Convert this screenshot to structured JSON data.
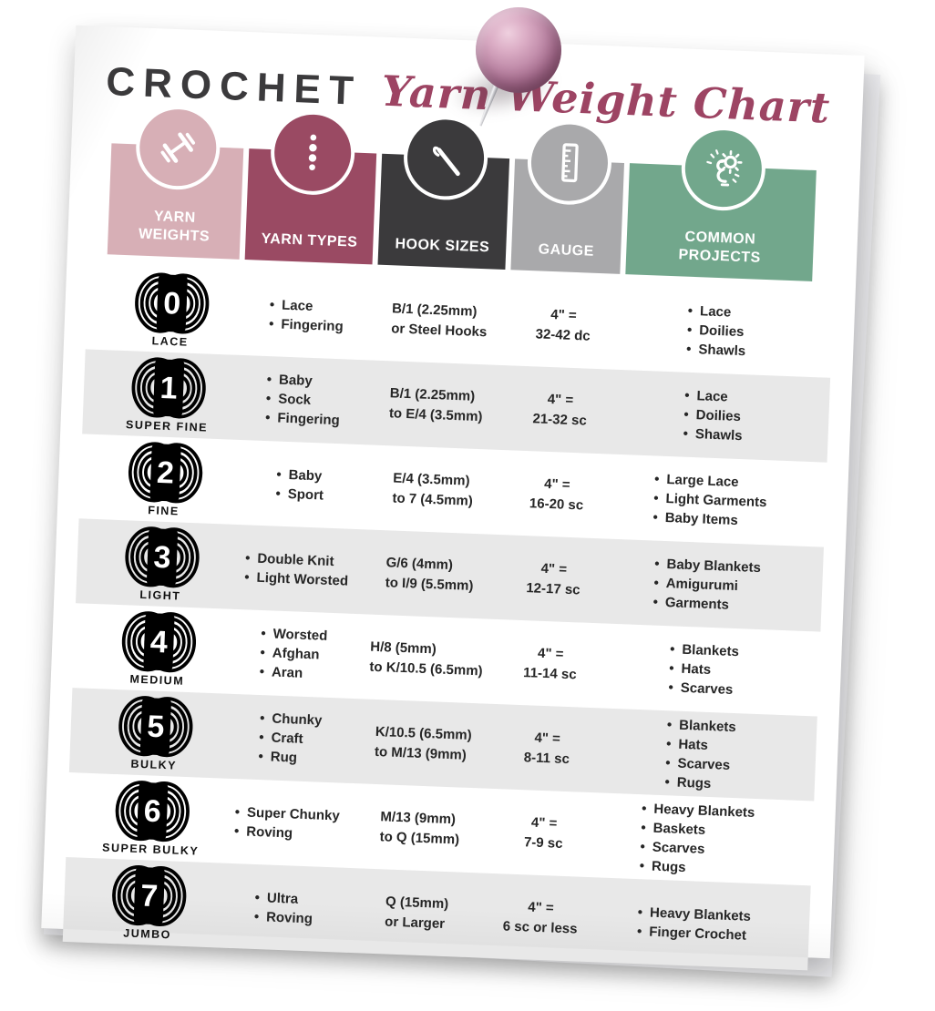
{
  "title": {
    "main": "CROCHET",
    "script": "Yarn Weight Chart"
  },
  "header": {
    "columns": [
      {
        "id": "yarn-weights",
        "label": "YARN WEIGHTS",
        "icon": "dumbbell-icon",
        "color": "#d7afb6"
      },
      {
        "id": "yarn-types",
        "label": "YARN TYPES",
        "icon": "yarn-dots-icon",
        "color": "#9a4a63"
      },
      {
        "id": "hook-sizes",
        "label": "HOOK SIZES",
        "icon": "crochet-hook-icon",
        "color": "#3b3a3c"
      },
      {
        "id": "gauge",
        "label": "GAUGE",
        "icon": "ruler-icon",
        "color": "#a9a9ab"
      },
      {
        "id": "common-projects",
        "label": "COMMON PROJECTS",
        "icon": "idea-gear-icon",
        "color": "#72a78c"
      }
    ]
  },
  "rows": [
    {
      "number": "0",
      "name": "LACE",
      "types": [
        "Lace",
        "Fingering"
      ],
      "hook": [
        "B/1 (2.25mm)",
        "or Steel Hooks"
      ],
      "gauge": [
        "4\" =",
        "32-42 dc"
      ],
      "projects": [
        "Lace",
        "Doilies",
        "Shawls"
      ]
    },
    {
      "number": "1",
      "name": "SUPER FINE",
      "types": [
        "Baby",
        "Sock",
        "Fingering"
      ],
      "hook": [
        "B/1 (2.25mm)",
        "to E/4 (3.5mm)"
      ],
      "gauge": [
        "4\" =",
        "21-32 sc"
      ],
      "projects": [
        "Lace",
        "Doilies",
        "Shawls"
      ]
    },
    {
      "number": "2",
      "name": "FINE",
      "types": [
        "Baby",
        "Sport"
      ],
      "hook": [
        "E/4 (3.5mm)",
        "to 7 (4.5mm)"
      ],
      "gauge": [
        "4\" =",
        "16-20 sc"
      ],
      "projects": [
        "Large Lace",
        "Light Garments",
        "Baby Items"
      ]
    },
    {
      "number": "3",
      "name": "LIGHT",
      "types": [
        "Double Knit",
        "Light Worsted"
      ],
      "hook": [
        "G/6 (4mm)",
        "to I/9 (5.5mm)"
      ],
      "gauge": [
        "4\" =",
        "12-17 sc"
      ],
      "projects": [
        "Baby Blankets",
        "Amigurumi",
        "Garments"
      ]
    },
    {
      "number": "4",
      "name": "MEDIUM",
      "types": [
        "Worsted",
        "Afghan",
        "Aran"
      ],
      "hook": [
        "H/8 (5mm)",
        "to K/10.5 (6.5mm)"
      ],
      "gauge": [
        "4\" =",
        "11-14 sc"
      ],
      "projects": [
        "Blankets",
        "Hats",
        "Scarves"
      ]
    },
    {
      "number": "5",
      "name": "BULKY",
      "types": [
        "Chunky",
        "Craft",
        "Rug"
      ],
      "hook": [
        "K/10.5 (6.5mm)",
        "to M/13 (9mm)"
      ],
      "gauge": [
        "4\" =",
        "8-11 sc"
      ],
      "projects": [
        "Blankets",
        "Hats",
        "Scarves",
        "Rugs"
      ]
    },
    {
      "number": "6",
      "name": "SUPER BULKY",
      "types": [
        "Super Chunky",
        "Roving"
      ],
      "hook": [
        "M/13 (9mm)",
        "to Q (15mm)"
      ],
      "gauge": [
        "4\" =",
        "7-9 sc"
      ],
      "projects": [
        "Heavy Blankets",
        "Baskets",
        "Scarves",
        "Rugs"
      ]
    },
    {
      "number": "7",
      "name": "JUMBO",
      "types": [
        "Ultra",
        "Roving"
      ],
      "hook": [
        "Q (15mm)",
        "or Larger"
      ],
      "gauge": [
        "4\" =",
        "6 sc or less"
      ],
      "projects": [
        "Heavy Blankets",
        "Finger Crochet"
      ]
    }
  ],
  "colors": {
    "title_dark": "#3b3a3c",
    "title_script": "#9d4463",
    "row_alt": "#e8e8e8",
    "text": "#262626",
    "pin": "#c08ba9"
  }
}
